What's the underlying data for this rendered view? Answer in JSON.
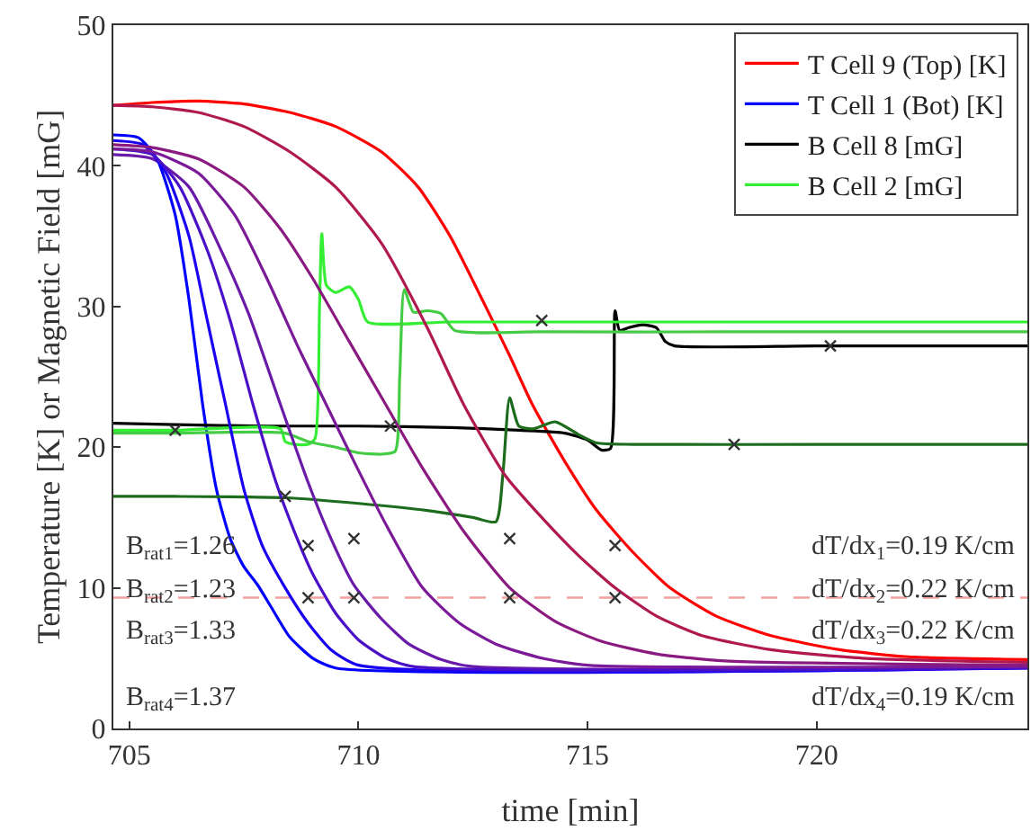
{
  "chart_data": {
    "type": "line",
    "xlabel": "time [min]",
    "ylabel": "Temperature [K] or Magnetic Field [mG]",
    "xlim": [
      704.65,
      724.6
    ],
    "xticks": [
      705,
      710,
      715,
      720
    ],
    "ylim": [
      0,
      50
    ],
    "yticks": [
      0,
      10,
      20,
      30,
      40,
      50
    ],
    "grid": false,
    "legend": "top right",
    "series": [
      {
        "name": "T Cell 9 (Top) [K]",
        "color": "#ff0000",
        "x": [
          704.65,
          705.5,
          706.5,
          707.5,
          708.5,
          709.5,
          710.5,
          711.3,
          712.0,
          712.7,
          713.3,
          713.8,
          714.5,
          715.2,
          716.0,
          716.8,
          717.8,
          719,
          720.5,
          722,
          724.6
        ],
        "values": [
          44.3,
          44.5,
          44.6,
          44.4,
          43.8,
          42.8,
          41,
          38.5,
          35,
          30.5,
          26.5,
          23,
          19,
          15.5,
          12.5,
          10,
          8,
          6.6,
          5.6,
          5.1,
          4.9
        ]
      },
      {
        "name": "T Cell 1 (Bot) [K]",
        "color": "#0000ff",
        "x": [
          704.65,
          705.2,
          705.6,
          706.0,
          706.3,
          706.6,
          706.9,
          707.2,
          707.5,
          707.8,
          708.1,
          708.5,
          709.0,
          709.5,
          724.6
        ],
        "values": [
          42.2,
          42.0,
          40.5,
          36.5,
          30.5,
          23,
          17,
          13.5,
          11.5,
          10.2,
          8.6,
          6.5,
          5.0,
          4.3,
          4.3
        ]
      },
      {
        "name": "B Cell 8 [mG]",
        "color": "#000000",
        "x": [
          704.65,
          706,
          708,
          710,
          712,
          713.5,
          714.5,
          715.0,
          715.3,
          715.5,
          715.6,
          715.7,
          715.9,
          716.2,
          716.5,
          716.7,
          716.9,
          720,
          724.6
        ],
        "values": [
          21.7,
          21.6,
          21.5,
          21.5,
          21.4,
          21.2,
          21.0,
          20.5,
          19.8,
          19.9,
          29.7,
          28.3,
          28.5,
          28.7,
          28.5,
          27.5,
          27.2,
          27.2,
          27.2
        ]
      },
      {
        "name": "B Cell 2 [mG]",
        "color": "#33ee33",
        "x": [
          704.65,
          706,
          708.3,
          708.4,
          708.6,
          708.9,
          709.05,
          709.15,
          709.2,
          709.3,
          709.5,
          709.8,
          710.0,
          710.2,
          712,
          716,
          724.6
        ],
        "values": [
          21.2,
          21.2,
          21.3,
          20.4,
          20.2,
          20.2,
          20.6,
          30,
          35.2,
          31.5,
          31,
          31.4,
          30.5,
          28.9,
          28.9,
          28.9,
          28.9
        ]
      },
      {
        "color": "#44cc44",
        "x": [
          704.65,
          706,
          708.4,
          708.9,
          709.5,
          710.0,
          710.5,
          710.8,
          710.9,
          711.0,
          711.2,
          711.5,
          711.8,
          712.1,
          714,
          718,
          724.6
        ],
        "values": [
          21.0,
          21.0,
          21.0,
          20.4,
          20.0,
          19.6,
          19.5,
          19.7,
          25,
          31.2,
          29.6,
          29.7,
          29.5,
          28.3,
          28.2,
          28.2,
          28.2
        ]
      },
      {
        "color": "#1d6b1d",
        "x": [
          704.65,
          706,
          708.4,
          710,
          711.5,
          712.5,
          713.0,
          713.15,
          713.3,
          713.5,
          713.8,
          714.3,
          714.8,
          715.2,
          716,
          720,
          724.6
        ],
        "values": [
          16.5,
          16.5,
          16.4,
          16.0,
          15.5,
          15.0,
          14.7,
          18,
          23.5,
          21.5,
          21.3,
          21.8,
          20.9,
          20.3,
          20.2,
          20.2,
          20.2
        ]
      },
      {
        "color": "#6a1aa8",
        "x": [
          704.65,
          705.5,
          706.3,
          707.0,
          707.6,
          708.3,
          708.9,
          709.4,
          709.9,
          710.5,
          711.1,
          711.8,
          712.5,
          724.6
        ],
        "values": [
          40.8,
          40.5,
          38.5,
          34,
          29.5,
          23,
          17.5,
          13.5,
          10.2,
          7.8,
          6.0,
          4.9,
          4.4,
          4.3
        ]
      },
      {
        "color": "#1a00f0",
        "x": [
          704.65,
          705.3,
          705.8,
          706.3,
          706.7,
          707.1,
          707.5,
          707.9,
          708.4,
          708.9,
          709.4,
          710.0,
          724.6
        ],
        "values": [
          41.8,
          41.5,
          39.5,
          35,
          29,
          23,
          17,
          13,
          10,
          7.5,
          5.6,
          4.5,
          4.3
        ]
      },
      {
        "color": "#4a10c8",
        "x": [
          704.65,
          705.5,
          706.1,
          706.7,
          707.2,
          707.7,
          708.2,
          708.6,
          709.0,
          709.5,
          710.0,
          710.6,
          711.2,
          724.6
        ],
        "values": [
          41.2,
          40.8,
          38.5,
          34,
          29,
          23,
          17.5,
          14,
          11,
          8.2,
          6.3,
          5.0,
          4.4,
          4.3
        ]
      },
      {
        "color": "#7a1a98",
        "x": [
          704.65,
          705.5,
          706.5,
          707.3,
          708.0,
          708.7,
          709.3,
          709.9,
          710.6,
          711.4,
          712.2,
          713.0,
          714.0,
          715.0,
          724.6
        ],
        "values": [
          41.2,
          41.0,
          39.5,
          36.5,
          32,
          27,
          23,
          19,
          14.5,
          10,
          7.5,
          6.0,
          5.0,
          4.5,
          4.4
        ]
      },
      {
        "color": "#8a1a80",
        "x": [
          704.65,
          705.5,
          706.5,
          707.5,
          708.3,
          709.0,
          709.8,
          710.6,
          711.4,
          712.3,
          713.3,
          714.3,
          715.3,
          716.5,
          718,
          724.6
        ],
        "values": [
          41.5,
          41.3,
          40.5,
          38.5,
          35.5,
          32,
          27.5,
          23,
          18.5,
          14,
          10,
          7.6,
          6.2,
          5.3,
          4.8,
          4.5
        ]
      },
      {
        "color": "#b01850",
        "x": [
          704.65,
          705.5,
          706.5,
          707.5,
          708.5,
          709.5,
          710.5,
          711.5,
          712.3,
          713.2,
          714.0,
          714.8,
          715.6,
          716.5,
          717.5,
          719,
          721,
          724.6
        ],
        "values": [
          44.3,
          44.2,
          43.8,
          42.8,
          41,
          38.5,
          34.5,
          28.5,
          23,
          18,
          15,
          12.3,
          10,
          8.0,
          6.6,
          5.6,
          5.0,
          4.7
        ]
      },
      {
        "type": "scatter",
        "marker": "cross",
        "color": "#333333",
        "x": [
          706.0,
          710.7,
          714.0,
          720.3,
          708.4,
          718.2,
          708.9,
          709.9,
          713.3,
          715.6,
          708.9,
          709.9,
          713.3,
          715.6
        ],
        "values": [
          21.2,
          21.5,
          29.0,
          27.2,
          16.5,
          20.2,
          13.0,
          13.5,
          13.5,
          13.0,
          9.3,
          9.3,
          9.3,
          9.3
        ]
      }
    ],
    "ref_lines": [
      {
        "axis": "y",
        "value": 9.3,
        "color": "#f4a0a0",
        "line_style": "dashed"
      }
    ],
    "annotations": [
      "B$_{rat1}$=1.26",
      "B$_{rat2}$=1.23",
      "B$_{rat3}$=1.33",
      "B$_{rat4}$=1.37",
      "dT/dx$_{1}$=0.19 K/cm",
      "dT/dx$_{2}$=0.22 K/cm",
      "dT/dx$_{3}$=0.22 K/cm",
      "dT/dx$_{4}$=0.19 K/cm"
    ]
  }
}
